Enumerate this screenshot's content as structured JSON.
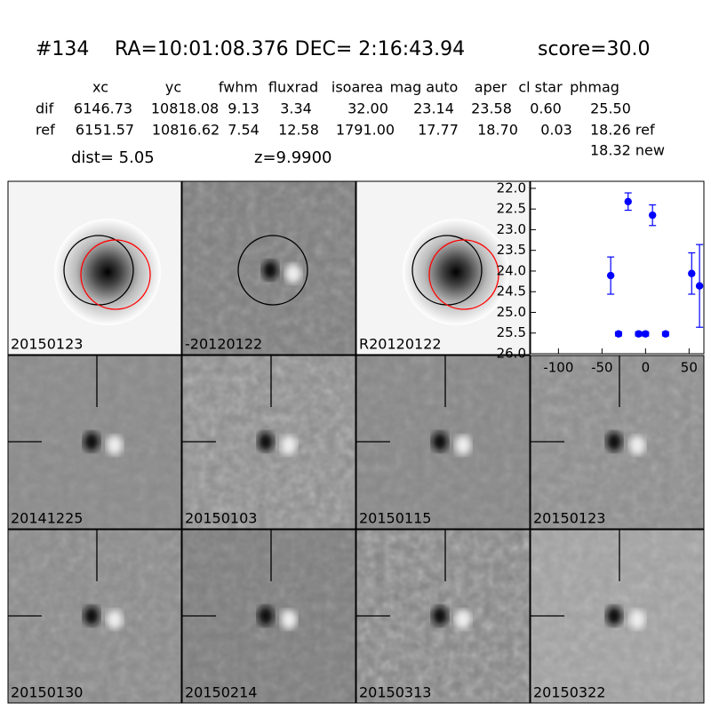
{
  "header": {
    "id": "#134",
    "coords": "RA=10:01:08.376 DEC= 2:16:43.94",
    "score": "score=30.0"
  },
  "table": {
    "columns": [
      "xc",
      "yc",
      "fwhm",
      "fluxrad",
      "isoarea",
      "mag auto",
      "aper",
      "cl star",
      "phmag"
    ],
    "rows": [
      [
        "dif",
        "6146.73",
        "10818.08",
        "9.13",
        "3.34",
        "32.00",
        "23.14",
        "23.58",
        "0.60",
        "25.50"
      ],
      [
        "ref",
        "6151.57",
        "10816.62",
        "7.54",
        "12.58",
        "1791.00",
        "17.77",
        "18.70",
        "0.03",
        "18.26 ref"
      ]
    ],
    "extra": "18.32 new"
  },
  "dist": "dist=  5.05",
  "z": "z=9.9900",
  "stamps": [
    {
      "label": "20150123"
    },
    {
      "label": "-20120122"
    },
    {
      "label": "R20120122"
    },
    {
      "label": "20141225"
    },
    {
      "label": "20150103"
    },
    {
      "label": "20150115"
    },
    {
      "label": "20150123",
      "color": "#ff0000"
    },
    {
      "label": "20150130"
    },
    {
      "label": "20150214"
    },
    {
      "label": "20150313"
    },
    {
      "label": "20150322"
    }
  ],
  "chart_data": {
    "type": "scatter",
    "color": "#0000ff",
    "x": [
      -40,
      -31,
      -20,
      -8,
      0,
      8,
      23,
      53,
      62
    ],
    "values": [
      24.11,
      25.52,
      22.32,
      25.52,
      25.52,
      22.65,
      25.52,
      24.06,
      24.36
    ],
    "errors": [
      0.45,
      0.05,
      0.21,
      0.05,
      0.05,
      0.25,
      0.05,
      0.5,
      1.0
    ],
    "xlim": [
      -132,
      67
    ],
    "ylim": [
      26,
      21.83
    ],
    "xticks": [
      -100,
      -50,
      0,
      50
    ],
    "yticks": [
      {
        "value": 22,
        "label": "22.0"
      },
      {
        "value": 22.5,
        "label": "22.5"
      },
      {
        "value": 23,
        "label": "23.0"
      },
      {
        "value": 23.5,
        "label": "23.5"
      },
      {
        "value": 24,
        "label": "24.0"
      },
      {
        "value": 24.5,
        "label": "24.5"
      },
      {
        "value": 25,
        "label": "25.0"
      },
      {
        "value": 25.5,
        "label": "25.5"
      },
      {
        "value": 26,
        "label": "26.0"
      }
    ]
  }
}
